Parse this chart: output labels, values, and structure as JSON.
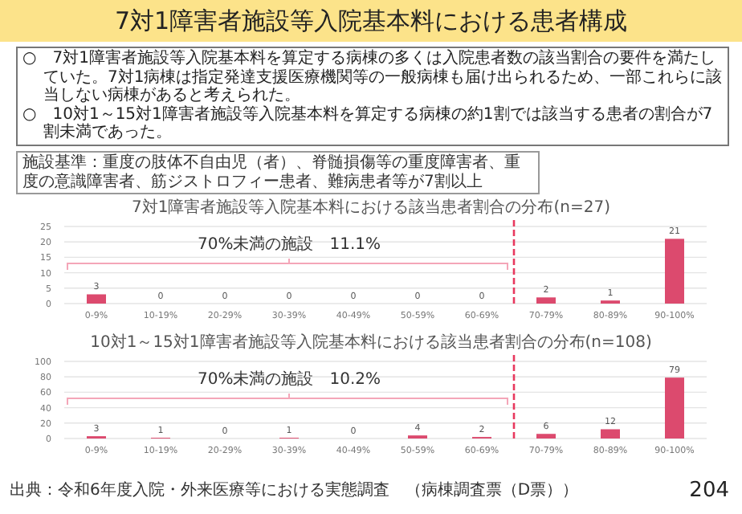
{
  "chart_data": [
    {
      "type": "other",
      "title": "7対1障害者施設等入院基本料における患者構成",
      "annotations": [
        "○　7対1障害者施設等入院基本料を算定する病棟の多くは入院患者数の該当割合の要件を満たしていた。7対1病棟は指定発達支援医療機関等の一般病棟も届け出られるため、一部これらに該当しない病棟があると考えられた。",
        "○　10対1～15対1障害者施設等入院基本料を算定する病棟の約1割では該当する患者の割合が7割未満であった。",
        "施設基準：重度の肢体不自由児（者）、脊髄損傷等の重度障害者、重度の意識障害者、筋ジストロフィー患者、難病患者等が7割以上",
        "出典：令和6年度入院・外来医療等における実態調査　（病棟調査票（D票））",
        "204"
      ]
    },
    {
      "type": "bar",
      "title": "7対1障害者施設等入院基本料における該当患者割合の分布(n=27)",
      "categories": [
        "0-9%",
        "10-19%",
        "20-29%",
        "30-39%",
        "40-49%",
        "50-59%",
        "60-69%",
        "70-79%",
        "80-89%",
        "90-100%"
      ],
      "values": [
        3,
        0,
        0,
        0,
        0,
        0,
        0,
        2,
        1,
        21
      ],
      "color": "#dc4a6e",
      "ylim": [
        0,
        25
      ],
      "yticks": [
        0,
        5,
        10,
        15,
        20,
        25
      ],
      "grid": "y",
      "data_labels": true,
      "annotations": [
        "70%未満の施設　11.1%"
      ]
    },
    {
      "type": "bar",
      "title": "10対1～15対1障害者施設等入院基本料における該当患者割合の分布(n=108)",
      "categories": [
        "0-9%",
        "10-19%",
        "20-29%",
        "30-39%",
        "40-49%",
        "50-59%",
        "60-69%",
        "70-79%",
        "80-89%",
        "90-100%"
      ],
      "values": [
        3,
        1,
        0,
        1,
        0,
        4,
        2,
        6,
        12,
        79
      ],
      "color": "#dc4a6e",
      "ylim": [
        0,
        100
      ],
      "yticks": [
        0,
        20,
        40,
        60,
        80,
        100
      ],
      "grid": "y",
      "data_labels": true,
      "annotations": [
        "70%未満の施設　10.2%"
      ]
    }
  ]
}
